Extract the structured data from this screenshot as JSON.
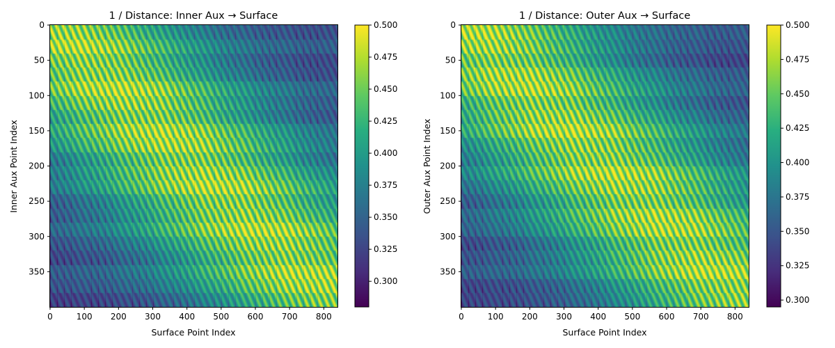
{
  "chart_data": [
    {
      "type": "heatmap",
      "title": "1 / Distance: Inner Aux → Surface",
      "xlabel": "Surface Point Index",
      "ylabel": "Inner Aux Point Index",
      "xlim": [
        0,
        840
      ],
      "ylim": [
        400,
        0
      ],
      "xticks": [
        0,
        100,
        200,
        300,
        400,
        500,
        600,
        700,
        800
      ],
      "yticks": [
        0,
        50,
        100,
        150,
        200,
        250,
        300,
        350
      ],
      "rows": 400,
      "cols": 840,
      "blocks_y": 20,
      "blocks_x": 42,
      "colormap": "viridis",
      "vmin": 0.28,
      "vmax": 0.5,
      "colorbar_ticks": [
        "0.300",
        "0.325",
        "0.350",
        "0.375",
        "0.400",
        "0.425",
        "0.450",
        "0.475",
        "0.500"
      ],
      "trend": "bright at left-top, shifting to bright at right-bottom",
      "grid": false
    },
    {
      "type": "heatmap",
      "title": "1 / Distance: Outer Aux → Surface",
      "xlabel": "Surface Point Index",
      "ylabel": "Outer Aux Point Index",
      "xlim": [
        0,
        840
      ],
      "ylim": [
        400,
        0
      ],
      "xticks": [
        0,
        100,
        200,
        300,
        400,
        500,
        600,
        700,
        800
      ],
      "yticks": [
        0,
        50,
        100,
        150,
        200,
        250,
        300,
        350
      ],
      "rows": 400,
      "cols": 840,
      "blocks_y": 20,
      "blocks_x": 42,
      "colormap": "viridis",
      "vmin": 0.295,
      "vmax": 0.5,
      "colorbar_ticks": [
        "0.300",
        "0.325",
        "0.350",
        "0.375",
        "0.400",
        "0.425",
        "0.450",
        "0.475",
        "0.500"
      ],
      "trend": "bright at left-top, shifting to bright at right-bottom",
      "grid": false
    }
  ]
}
